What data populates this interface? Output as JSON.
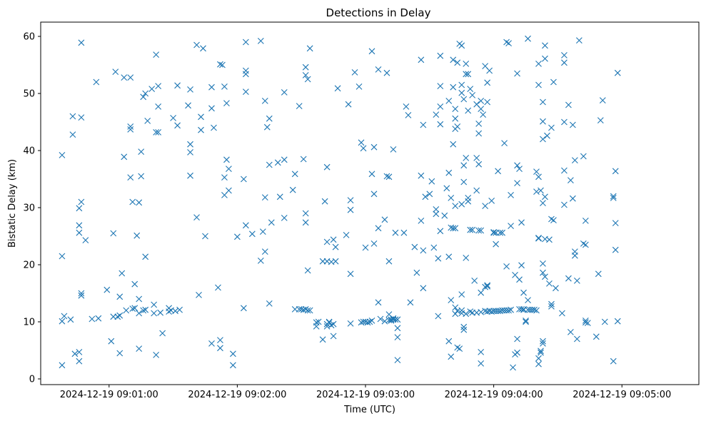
{
  "chart_data": {
    "type": "scatter",
    "title": "Detections in Delay",
    "xlabel": "Time (UTC)",
    "ylabel": "Bistatic Delay (km)",
    "marker": "x",
    "color": "#1f77b4",
    "x_unit": "seconds after 2024-12-19 09:00:00",
    "xlim": [
      28,
      336
    ],
    "ylim": [
      -1,
      62.5
    ],
    "x_ticks": [
      {
        "value": 60,
        "label": "2024-12-19 09:01:00"
      },
      {
        "value": 120,
        "label": "2024-12-19 09:02:00"
      },
      {
        "value": 180,
        "label": "2024-12-19 09:03:00"
      },
      {
        "value": 240,
        "label": "2024-12-19 09:04:00"
      },
      {
        "value": 300,
        "label": "2024-12-19 09:05:00"
      }
    ],
    "y_ticks": [
      0,
      10,
      20,
      30,
      40,
      50,
      60
    ],
    "points": [
      [
        38,
        39.2
      ],
      [
        38,
        21.5
      ],
      [
        38,
        10.1
      ],
      [
        38,
        2.4
      ],
      [
        39,
        11
      ],
      [
        42,
        10.4
      ],
      [
        43,
        46
      ],
      [
        43,
        42.8
      ],
      [
        44,
        4.4
      ],
      [
        46,
        26.9
      ],
      [
        46,
        29.9
      ],
      [
        46,
        25.6
      ],
      [
        46,
        4.7
      ],
      [
        46,
        3.1
      ],
      [
        47,
        58.9
      ],
      [
        47,
        45.8
      ],
      [
        47,
        31
      ],
      [
        47,
        15
      ],
      [
        47,
        14.6
      ],
      [
        49,
        24.3
      ],
      [
        52,
        10.5
      ],
      [
        54,
        52
      ],
      [
        55,
        10.6
      ],
      [
        59,
        15.6
      ],
      [
        61,
        6.6
      ],
      [
        62,
        25.5
      ],
      [
        62,
        10.9
      ],
      [
        63,
        53.8
      ],
      [
        64,
        10.9
      ],
      [
        65,
        11.1
      ],
      [
        65,
        14.4
      ],
      [
        65,
        4.5
      ],
      [
        66,
        18.5
      ],
      [
        67,
        38.9
      ],
      [
        67,
        52.8
      ],
      [
        68,
        12
      ],
      [
        70,
        52.8
      ],
      [
        70,
        44.2
      ],
      [
        70,
        43.7
      ],
      [
        70,
        35.3
      ],
      [
        71,
        31
      ],
      [
        71,
        12.3
      ],
      [
        72,
        12.4
      ],
      [
        72,
        16.6
      ],
      [
        73,
        25.1
      ],
      [
        74,
        30.9
      ],
      [
        74,
        14
      ],
      [
        74,
        11.5
      ],
      [
        74,
        5.3
      ],
      [
        75,
        39.8
      ],
      [
        75,
        35.5
      ],
      [
        76,
        49.4
      ],
      [
        76,
        12
      ],
      [
        77,
        50
      ],
      [
        77,
        21.4
      ],
      [
        77,
        12.1
      ],
      [
        78,
        45.2
      ],
      [
        80,
        50.8
      ],
      [
        81,
        13
      ],
      [
        81,
        11.5
      ],
      [
        82,
        56.8
      ],
      [
        82,
        43.2
      ],
      [
        82,
        4.2
      ],
      [
        83,
        51.3
      ],
      [
        83,
        47.7
      ],
      [
        83,
        43.2
      ],
      [
        84,
        11.6
      ],
      [
        85,
        8
      ],
      [
        88,
        11.8
      ],
      [
        88,
        12.4
      ],
      [
        89,
        12
      ],
      [
        90,
        45.7
      ],
      [
        91,
        11.9
      ],
      [
        92,
        51.4
      ],
      [
        92,
        44.4
      ],
      [
        93,
        12.1
      ],
      [
        97,
        47.9
      ],
      [
        98,
        50.7
      ],
      [
        98,
        41.1
      ],
      [
        98,
        39.7
      ],
      [
        98,
        35.6
      ],
      [
        101,
        58.5
      ],
      [
        101,
        28.3
      ],
      [
        102,
        14.7
      ],
      [
        103,
        45.9
      ],
      [
        103,
        43.6
      ],
      [
        104,
        57.9
      ],
      [
        105,
        25
      ],
      [
        108,
        51.1
      ],
      [
        108,
        47.4
      ],
      [
        108,
        6.2
      ],
      [
        109,
        44
      ],
      [
        111,
        16
      ],
      [
        112,
        55.1
      ],
      [
        112,
        6.8
      ],
      [
        112,
        5.4
      ],
      [
        113,
        55
      ],
      [
        114,
        51.2
      ],
      [
        114,
        35.3
      ],
      [
        114,
        32.2
      ],
      [
        115,
        48.3
      ],
      [
        115,
        38.4
      ],
      [
        116,
        36.8
      ],
      [
        116,
        33
      ],
      [
        118,
        4.4
      ],
      [
        118,
        2.4
      ],
      [
        120,
        24.9
      ],
      [
        123,
        12.4
      ],
      [
        123,
        35
      ],
      [
        124,
        53.4
      ],
      [
        124,
        59
      ],
      [
        124,
        54
      ],
      [
        124,
        50.3
      ],
      [
        124,
        26.9
      ],
      [
        127,
        25.4
      ],
      [
        131,
        59.2
      ],
      [
        131,
        20.7
      ],
      [
        132,
        25.8
      ],
      [
        133,
        48.7
      ],
      [
        133,
        31.8
      ],
      [
        133,
        22.3
      ],
      [
        134,
        44.1
      ],
      [
        135,
        37.5
      ],
      [
        135,
        13.2
      ],
      [
        135,
        45.6
      ],
      [
        136,
        27.4
      ],
      [
        139,
        37.9
      ],
      [
        140,
        31.9
      ],
      [
        142,
        38.4
      ],
      [
        142,
        50.2
      ],
      [
        142,
        28.2
      ],
      [
        146,
        33.1
      ],
      [
        147,
        35.9
      ],
      [
        147,
        12.2
      ],
      [
        149,
        47.8
      ],
      [
        149,
        12.2
      ],
      [
        150,
        12.2
      ],
      [
        151,
        38.5
      ],
      [
        151,
        12.1
      ],
      [
        152,
        12.2
      ],
      [
        152,
        54.6
      ],
      [
        152,
        53.2
      ],
      [
        153,
        52.5
      ],
      [
        152,
        27.4
      ],
      [
        152,
        29
      ],
      [
        153,
        19
      ],
      [
        153,
        12
      ],
      [
        154,
        12
      ],
      [
        154,
        57.9
      ],
      [
        157,
        9.9
      ],
      [
        157,
        9.2
      ],
      [
        158,
        10
      ],
      [
        160,
        20.6
      ],
      [
        160,
        6.9
      ],
      [
        161,
        31.1
      ],
      [
        162,
        9.6
      ],
      [
        162,
        37.1
      ],
      [
        162,
        9.2
      ],
      [
        162,
        24
      ],
      [
        162,
        20.6
      ],
      [
        163,
        9.9
      ],
      [
        163,
        10
      ],
      [
        164,
        9.4
      ],
      [
        164,
        20.5
      ],
      [
        165,
        24.4
      ],
      [
        165,
        7.5
      ],
      [
        165,
        9.6
      ],
      [
        166,
        23.1
      ],
      [
        166,
        20.6
      ],
      [
        167,
        50.9
      ],
      [
        171,
        25.2
      ],
      [
        172,
        48.1
      ],
      [
        173,
        31.3
      ],
      [
        173,
        29.6
      ],
      [
        173,
        18.4
      ],
      [
        173,
        9.7
      ],
      [
        175,
        53.7
      ],
      [
        177,
        51.2
      ],
      [
        178,
        9.9
      ],
      [
        178,
        41.4
      ],
      [
        179,
        40.4
      ],
      [
        179,
        10
      ],
      [
        180,
        10
      ],
      [
        180,
        23
      ],
      [
        181,
        9.9
      ],
      [
        182,
        10
      ],
      [
        183,
        57.4
      ],
      [
        183,
        35.9
      ],
      [
        183,
        10.2
      ],
      [
        184,
        40.6
      ],
      [
        184,
        32.4
      ],
      [
        184,
        23.7
      ],
      [
        186,
        54.2
      ],
      [
        186,
        26.4
      ],
      [
        186,
        13.4
      ],
      [
        187,
        10.5
      ],
      [
        189,
        27.9
      ],
      [
        189,
        10.1
      ],
      [
        190,
        53.6
      ],
      [
        190,
        35.5
      ],
      [
        191,
        35.4
      ],
      [
        191,
        20.6
      ],
      [
        191,
        10.3
      ],
      [
        191,
        11.3
      ],
      [
        192,
        10.2
      ],
      [
        192,
        10.4
      ],
      [
        193,
        40.2
      ],
      [
        193,
        10.6
      ],
      [
        193,
        10.4
      ],
      [
        194,
        25.6
      ],
      [
        194,
        10.4
      ],
      [
        195,
        10.4
      ],
      [
        195,
        8.9
      ],
      [
        195,
        7.3
      ],
      [
        195,
        3.3
      ],
      [
        198,
        25.6
      ],
      [
        199,
        47.7
      ],
      [
        200,
        46.2
      ],
      [
        201,
        13.4
      ],
      [
        203,
        23.1
      ],
      [
        204,
        18.6
      ],
      [
        206,
        55.9
      ],
      [
        206,
        35.6
      ],
      [
        206,
        27.7
      ],
      [
        207,
        22.5
      ],
      [
        207,
        44.5
      ],
      [
        207,
        15.9
      ],
      [
        208,
        31.9
      ],
      [
        210,
        32.4
      ],
      [
        211,
        34.6
      ],
      [
        212,
        23
      ],
      [
        213,
        28.9
      ],
      [
        213,
        29.7
      ],
      [
        213,
        46.3
      ],
      [
        214,
        11
      ],
      [
        214,
        21.1
      ],
      [
        215,
        56.6
      ],
      [
        215,
        51.3
      ],
      [
        215,
        47.7
      ],
      [
        215,
        44.6
      ],
      [
        215,
        25.9
      ],
      [
        217,
        28.6
      ],
      [
        218,
        33.4
      ],
      [
        219,
        48.7
      ],
      [
        219,
        36.1
      ],
      [
        219,
        6.6
      ],
      [
        219,
        21.4
      ],
      [
        220,
        31.7
      ],
      [
        220,
        13.8
      ],
      [
        220,
        3.9
      ],
      [
        220,
        26.5
      ],
      [
        221,
        55.9
      ],
      [
        221,
        51.1
      ],
      [
        221,
        41.1
      ],
      [
        221,
        26.4
      ],
      [
        222,
        12.5
      ],
      [
        222,
        11.4
      ],
      [
        222,
        45.6
      ],
      [
        222,
        47.3
      ],
      [
        222,
        43.8
      ],
      [
        222,
        30.3
      ],
      [
        222,
        26.4
      ],
      [
        223,
        55.4
      ],
      [
        223,
        44.2
      ],
      [
        223,
        5.5
      ],
      [
        223,
        11.9
      ],
      [
        224,
        58.7
      ],
      [
        224,
        5.3
      ],
      [
        225,
        58.4
      ],
      [
        225,
        51.5
      ],
      [
        225,
        50.1
      ],
      [
        225,
        14.8
      ],
      [
        225,
        11.5
      ],
      [
        225,
        12
      ],
      [
        225,
        30.6
      ],
      [
        226,
        9.1
      ],
      [
        226,
        8.6
      ],
      [
        226,
        49
      ],
      [
        226,
        34.5
      ],
      [
        226,
        37.4
      ],
      [
        227,
        55.2
      ],
      [
        227,
        53.4
      ],
      [
        227,
        38.7
      ],
      [
        227,
        21.2
      ],
      [
        227,
        11.4
      ],
      [
        228,
        31.7
      ],
      [
        228,
        31.1
      ],
      [
        228,
        47
      ],
      [
        228,
        53.4
      ],
      [
        229,
        26.1
      ],
      [
        229,
        50.8
      ],
      [
        229,
        11.8
      ],
      [
        230,
        49.7
      ],
      [
        230,
        26.1
      ],
      [
        230,
        11.6
      ],
      [
        231,
        17.2
      ],
      [
        232,
        38.7
      ],
      [
        232,
        33
      ],
      [
        232,
        11.6
      ],
      [
        232,
        48.1
      ],
      [
        233,
        37.6
      ],
      [
        233,
        43
      ],
      [
        233,
        44.7
      ],
      [
        233,
        26
      ],
      [
        234,
        47.3
      ],
      [
        234,
        11.7
      ],
      [
        234,
        4.7
      ],
      [
        234,
        2.7
      ],
      [
        234,
        15.1
      ],
      [
        234,
        48.7
      ],
      [
        234,
        26
      ],
      [
        235,
        46.3
      ],
      [
        236,
        11.9
      ],
      [
        236,
        54.8
      ],
      [
        236,
        16.1
      ],
      [
        236,
        30.3
      ],
      [
        237,
        11.8
      ],
      [
        237,
        16.2
      ],
      [
        237,
        16.4
      ],
      [
        237,
        48.5
      ],
      [
        237,
        51.9
      ],
      [
        238,
        11.9
      ],
      [
        238,
        54
      ],
      [
        239,
        11.8
      ],
      [
        239,
        31.2
      ],
      [
        240,
        11.9
      ],
      [
        240,
        25.7
      ],
      [
        240,
        25.6
      ],
      [
        241,
        11.9
      ],
      [
        241,
        23.6
      ],
      [
        241,
        25.6
      ],
      [
        242,
        11.9
      ],
      [
        242,
        36.4
      ],
      [
        243,
        25.6
      ],
      [
        243,
        11.9
      ],
      [
        244,
        25.6
      ],
      [
        244,
        12
      ],
      [
        245,
        12
      ],
      [
        245,
        41.3
      ],
      [
        246,
        12
      ],
      [
        246,
        19.7
      ],
      [
        246,
        59
      ],
      [
        247,
        12
      ],
      [
        247,
        58.8
      ],
      [
        248,
        12.1
      ],
      [
        248,
        26.8
      ],
      [
        248,
        32.2
      ],
      [
        249,
        2
      ],
      [
        250,
        18.2
      ],
      [
        250,
        4.3
      ],
      [
        251,
        53.5
      ],
      [
        251,
        37.4
      ],
      [
        251,
        34.3
      ],
      [
        251,
        4.6
      ],
      [
        251,
        7
      ],
      [
        252,
        17.4
      ],
      [
        252,
        36.8
      ],
      [
        252,
        12.2
      ],
      [
        253,
        12.2
      ],
      [
        253,
        27.4
      ],
      [
        253,
        19.9
      ],
      [
        254,
        15.1
      ],
      [
        254,
        12.1
      ],
      [
        254,
        12.2
      ],
      [
        255,
        10.2
      ],
      [
        255,
        10
      ],
      [
        256,
        12.1
      ],
      [
        256,
        59.6
      ],
      [
        256,
        13.8
      ],
      [
        257,
        12.1
      ],
      [
        258,
        12.1
      ],
      [
        259,
        12.1
      ],
      [
        260,
        36.3
      ],
      [
        260,
        32.8
      ],
      [
        260,
        12
      ],
      [
        261,
        35.4
      ],
      [
        261,
        55.2
      ],
      [
        261,
        51.5
      ],
      [
        261,
        24.6
      ],
      [
        261,
        24.7
      ],
      [
        261,
        3.6
      ],
      [
        261,
        2.6
      ],
      [
        262,
        4.9
      ],
      [
        262,
        4.6
      ],
      [
        262,
        33
      ],
      [
        263,
        30.8
      ],
      [
        263,
        45.1
      ],
      [
        263,
        6.2
      ],
      [
        263,
        6.6
      ],
      [
        263,
        18.6
      ],
      [
        263,
        48.5
      ],
      [
        263,
        20.2
      ],
      [
        263,
        42
      ],
      [
        264,
        17.9
      ],
      [
        264,
        56.1
      ],
      [
        264,
        58.4
      ],
      [
        264,
        31.9
      ],
      [
        264,
        24.5
      ],
      [
        265,
        42.6
      ],
      [
        266,
        24.4
      ],
      [
        266,
        16.7
      ],
      [
        267,
        44
      ],
      [
        267,
        28
      ],
      [
        267,
        13.1
      ],
      [
        267,
        12.7
      ],
      [
        268,
        52
      ],
      [
        268,
        27.8
      ],
      [
        269,
        15.9
      ],
      [
        272,
        11.5
      ],
      [
        273,
        56.7
      ],
      [
        273,
        55.4
      ],
      [
        273,
        45
      ],
      [
        273,
        36.5
      ],
      [
        273,
        30.5
      ],
      [
        275,
        48
      ],
      [
        275,
        17.6
      ],
      [
        276,
        8.2
      ],
      [
        276,
        34.8
      ],
      [
        277,
        44.5
      ],
      [
        277,
        31.6
      ],
      [
        278,
        38.3
      ],
      [
        278,
        22.3
      ],
      [
        278,
        21.6
      ],
      [
        279,
        17.2
      ],
      [
        279,
        7
      ],
      [
        280,
        59.3
      ],
      [
        282,
        39
      ],
      [
        282,
        23.7
      ],
      [
        283,
        27.7
      ],
      [
        283,
        23.5
      ],
      [
        283,
        9.9
      ],
      [
        283,
        10.2
      ],
      [
        284,
        9.8
      ],
      [
        288,
        7.4
      ],
      [
        289,
        18.4
      ],
      [
        290,
        45.3
      ],
      [
        291,
        48.8
      ],
      [
        292,
        10
      ],
      [
        296,
        3.1
      ],
      [
        296,
        32
      ],
      [
        296,
        31.7
      ],
      [
        297,
        27.3
      ],
      [
        297,
        36.4
      ],
      [
        297,
        22.6
      ],
      [
        298,
        53.6
      ],
      [
        298,
        10.1
      ]
    ]
  }
}
